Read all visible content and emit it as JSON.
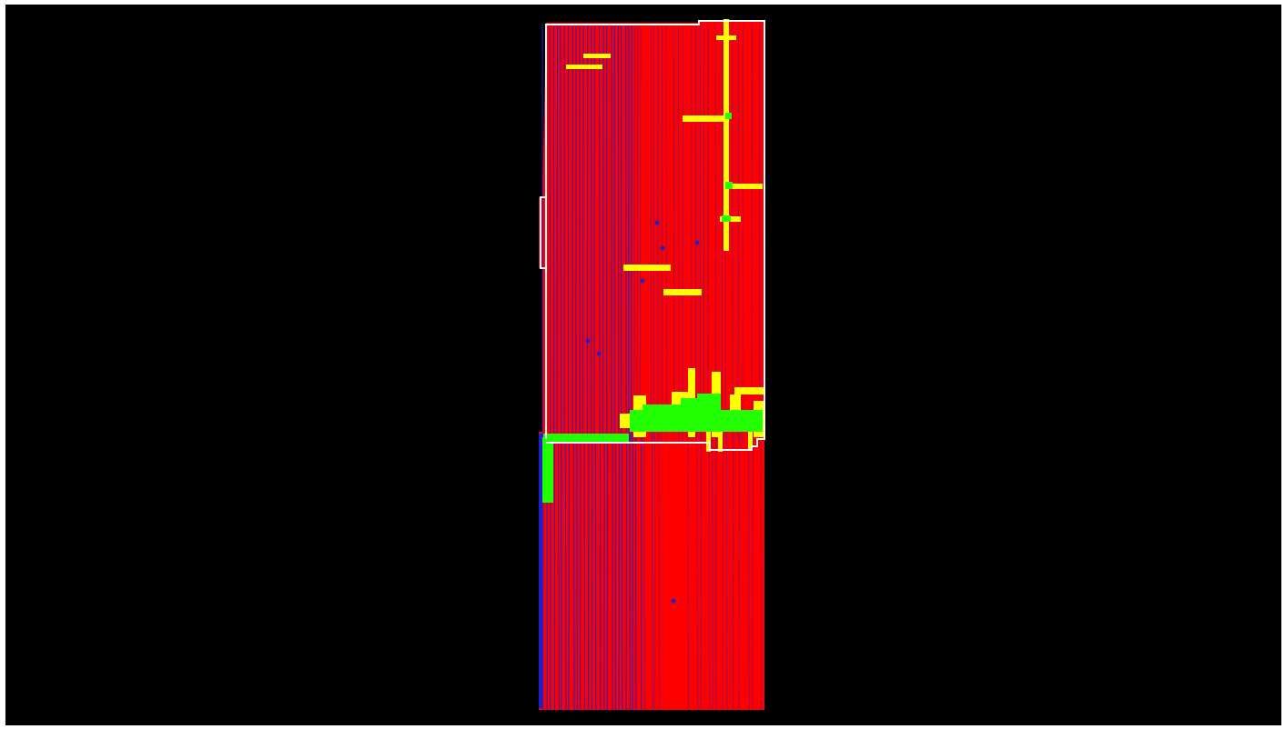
{
  "map": {
    "legend_colors": {
      "background": "#000000",
      "coverage_red": "#ff0000",
      "pass_lines_blue": "#2020c8",
      "overlap_yellow": "#ffff00",
      "double_overlap_green": "#22ff00",
      "boundary_white": "#ffffff"
    },
    "layers": [
      "field-coverage-area",
      "planter-pass-lines",
      "overlap-strips",
      "double-overlap-patches",
      "field-boundary"
    ]
  }
}
